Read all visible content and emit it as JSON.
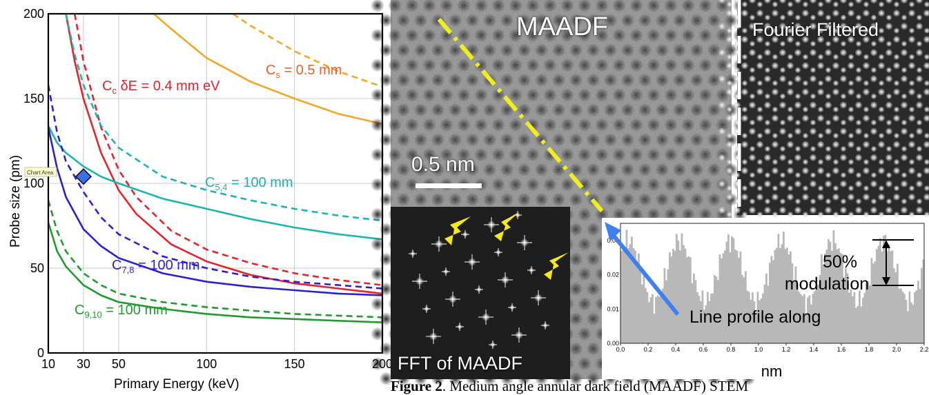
{
  "chart_data": {
    "type": "line",
    "xlabel": "Primary Energy (keV)",
    "ylabel": "Probe size (pm)",
    "xlim": [
      10,
      200
    ],
    "ylim": [
      0,
      200
    ],
    "x_ticks": [
      "10",
      "30",
      "50",
      "100",
      "150",
      "200"
    ],
    "y_ticks": [
      "0",
      "50",
      "100",
      "150",
      "200"
    ],
    "grid": true,
    "tooltip": "Chart Area",
    "marker_point": {
      "x": 30,
      "y": 104
    },
    "colors": {
      "cs": "#f5a623",
      "cc": "#e8212a",
      "c54": "#1cb3b3",
      "c78": "#2b1fd4",
      "c910": "#1f9b2e"
    },
    "labels": {
      "cs": {
        "main": "C",
        "sub": "s",
        "rest": " = 0.5 mm"
      },
      "cc": {
        "main": "C",
        "sub": "c",
        "rest": " δE = 0.4 mm eV"
      },
      "c54": {
        "main": "C",
        "sub": "5,4",
        "rest": " = 100 mm"
      },
      "c78": {
        "main": "C",
        "sub": "7,8",
        "rest": " = 100 mm"
      },
      "c910": {
        "main": "C",
        "sub": "9,10",
        "rest": " = 100 mm"
      }
    },
    "series": [
      {
        "group": "cs",
        "style": "solid",
        "x": [
          70,
          80,
          100,
          125,
          150,
          175,
          200
        ],
        "y": [
          200,
          191,
          174,
          160,
          150,
          141,
          135
        ]
      },
      {
        "group": "cs",
        "style": "dashed",
        "x": [
          115,
          125,
          150,
          175,
          200
        ],
        "y": [
          200,
          193,
          178,
          166,
          157
        ]
      },
      {
        "group": "cc",
        "style": "solid",
        "x": [
          20,
          25,
          30,
          40,
          50,
          60,
          80,
          100,
          125,
          150,
          175,
          200
        ],
        "y": [
          200,
          172,
          150,
          118,
          96,
          82,
          64,
          54,
          46,
          41,
          38,
          35
        ]
      },
      {
        "group": "cc",
        "style": "dashed",
        "x": [
          25,
          30,
          40,
          50,
          60,
          80,
          100,
          125,
          150,
          175,
          200
        ],
        "y": [
          200,
          172,
          133,
          108,
          92,
          72,
          61,
          53,
          47,
          43,
          40
        ]
      },
      {
        "group": "c54",
        "style": "solid",
        "x": [
          10,
          15,
          20,
          30,
          40,
          50,
          75,
          100,
          125,
          150,
          175,
          200
        ],
        "y": [
          134,
          124,
          118,
          110,
          104,
          100,
          91,
          85,
          79,
          74,
          70,
          67
        ]
      },
      {
        "group": "c54",
        "style": "dashed",
        "x": [
          20,
          25,
          30,
          40,
          50,
          75,
          100,
          125,
          150,
          175,
          200
        ],
        "y": [
          200,
          176,
          158,
          134,
          121,
          104,
          96,
          90,
          85,
          81,
          78
        ]
      },
      {
        "group": "c78",
        "style": "solid",
        "x": [
          10,
          15,
          20,
          30,
          40,
          50,
          75,
          100,
          125,
          150,
          175,
          200
        ],
        "y": [
          133,
          109,
          92,
          73,
          63,
          56,
          47,
          42,
          39,
          37,
          35,
          34
        ]
      },
      {
        "group": "c78",
        "style": "dashed",
        "x": [
          10,
          15,
          20,
          30,
          40,
          50,
          75,
          100,
          125,
          150,
          175,
          200
        ],
        "y": [
          158,
          130,
          113,
          95,
          80,
          70,
          57,
          50,
          45,
          42,
          40,
          38
        ]
      },
      {
        "group": "c910",
        "style": "solid",
        "x": [
          10,
          15,
          20,
          30,
          40,
          50,
          75,
          100,
          125,
          150,
          175,
          200
        ],
        "y": [
          77,
          60,
          51,
          40,
          34,
          30,
          26,
          23,
          21,
          20,
          19,
          18
        ]
      },
      {
        "group": "c910",
        "style": "dashed",
        "x": [
          10,
          15,
          20,
          30,
          40,
          50,
          75,
          100,
          125,
          150,
          175,
          200
        ],
        "y": [
          90,
          72,
          60,
          47,
          40,
          35,
          30,
          27,
          25,
          23,
          22,
          21
        ]
      }
    ]
  },
  "micrograph": {
    "maadf_title": "MAADF",
    "filtered_title": "Fourier Filtered",
    "scale_label": "0.5 nm",
    "fft_title": "FFT of MAADF",
    "colors": {
      "dash_line": "#f2ee1a",
      "arrow_yellow": "#f7ea10",
      "arrow_blue": "#3f7ff0",
      "profile_fill": "#b8b8b8"
    }
  },
  "profile": {
    "xlabel": "nm",
    "x_ticks": [
      "0.0",
      "0.2",
      "0.4",
      "0.6",
      "0.8",
      "1.0",
      "1.2",
      "1.4",
      "1.6",
      "1.8",
      "2.0",
      "2.2"
    ],
    "y_ticks": [
      "0.00",
      "0.01",
      "0.02",
      "0.03"
    ],
    "modulation_value": "50%",
    "modulation_label": "modulation",
    "line_profile_label": "Line profile along"
  },
  "caption": {
    "bold": "Figure 2",
    "rest": ". Medium angle annular dark field (MAADF) STEM"
  }
}
